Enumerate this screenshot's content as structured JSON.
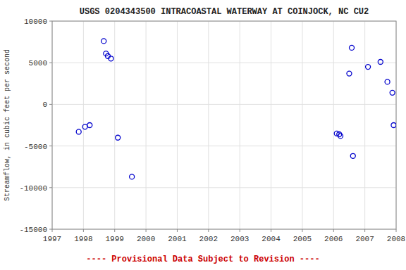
{
  "chart_data": {
    "type": "scatter",
    "title": "USGS 0204343500 INTRACOASTAL WATERWAY AT COINJOCK, NC CU2",
    "ylabel": "Streamflow, in cubic feet per second",
    "annotations": [
      {
        "text": "---- Provisional Data Subject to Revision ----",
        "color": "#CC0000"
      }
    ],
    "x": [
      1997.85,
      1998.05,
      1998.2,
      1998.65,
      1998.72,
      1998.78,
      1998.88,
      1999.1,
      1999.55,
      2006.1,
      2006.18,
      2006.22,
      2006.5,
      2006.58,
      2006.62,
      2007.1,
      2007.5,
      2007.72,
      2007.88,
      2007.92
    ],
    "values": [
      -3300,
      -2700,
      -2500,
      7600,
      6100,
      5800,
      5500,
      -4000,
      -8700,
      -3500,
      -3600,
      -3800,
      3700,
      6800,
      -6200,
      4500,
      5100,
      2700,
      1400,
      -2500
    ],
    "color": "#0000CC",
    "marker": "circle",
    "xlim": [
      1997,
      2008
    ],
    "ylim": [
      -15000,
      10000
    ],
    "xticks": [
      1997,
      1998,
      1999,
      2000,
      2001,
      2002,
      2003,
      2004,
      2005,
      2006,
      2007,
      2008
    ],
    "yticks": [
      -15000,
      -10000,
      -5000,
      0,
      5000,
      10000
    ],
    "grid": true
  }
}
